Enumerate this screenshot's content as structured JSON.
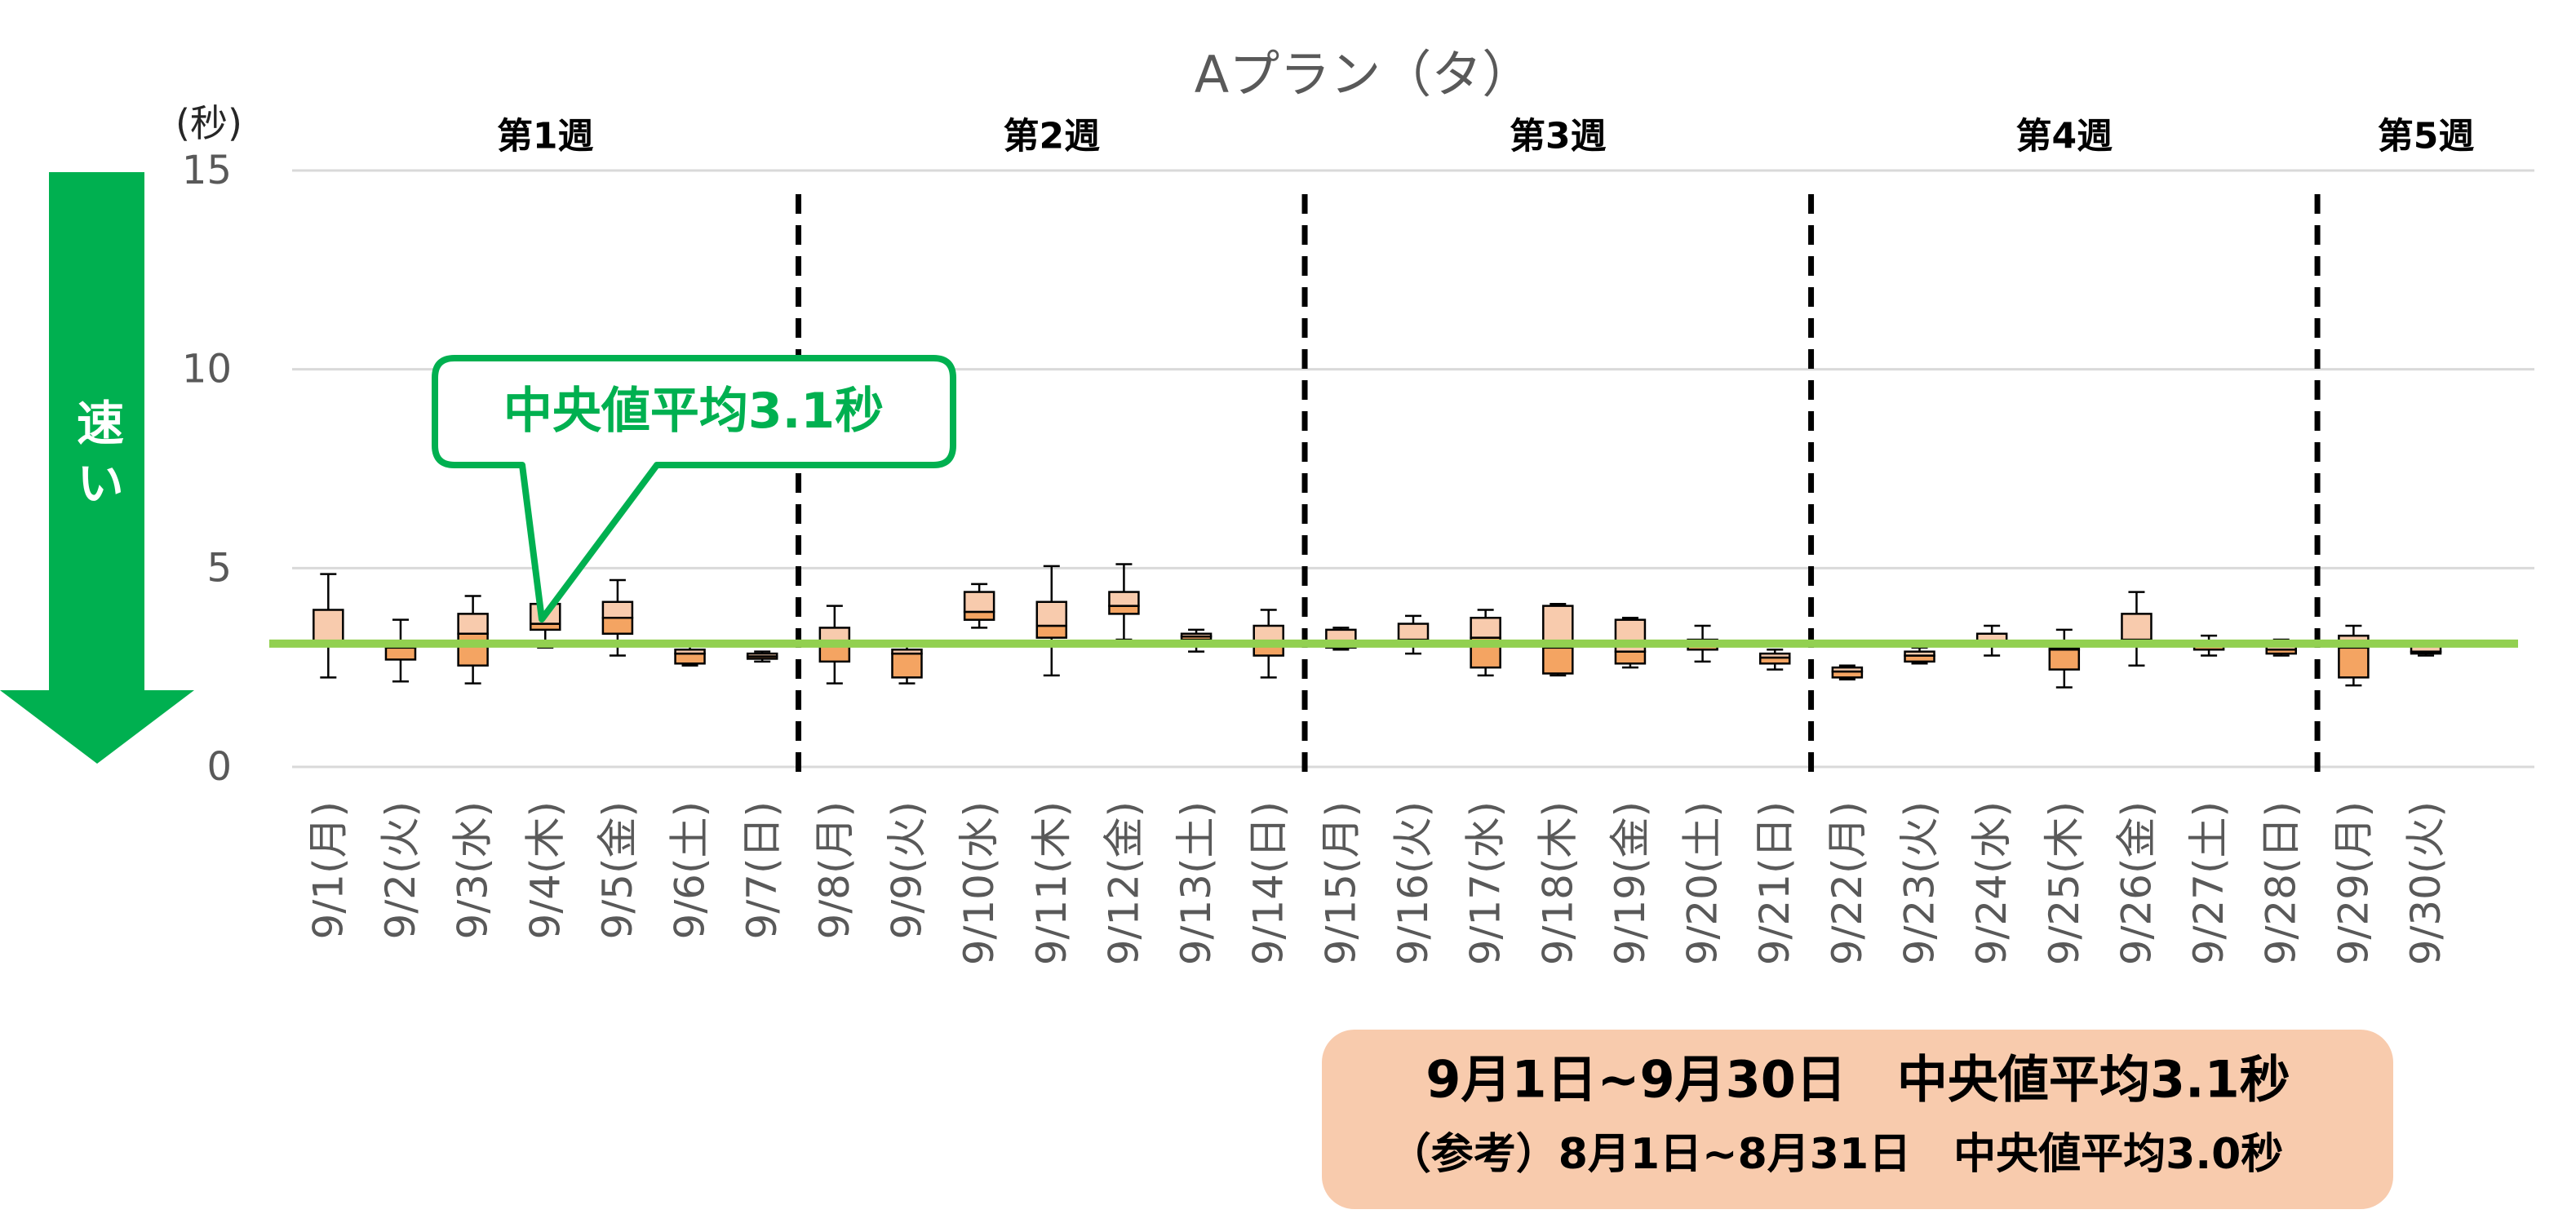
{
  "chart_data": {
    "type": "box",
    "title": "Aプラン（タ）",
    "xlabel": "",
    "ylabel": "(秒)",
    "ylim": [
      0,
      15
    ],
    "yticks": [
      0,
      5,
      10,
      15
    ],
    "grid": true,
    "categories": [
      "9/1(月)",
      "9/2(火)",
      "9/3(水)",
      "9/4(木)",
      "9/5(金)",
      "9/6(土)",
      "9/7(日)",
      "9/8(月)",
      "9/9(火)",
      "9/10(水)",
      "9/11(木)",
      "9/12(金)",
      "9/13(土)",
      "9/14(日)",
      "9/15(月)",
      "9/16(火)",
      "9/17(水)",
      "9/18(木)",
      "9/19(金)",
      "9/20(土)",
      "9/21(日)",
      "9/22(月)",
      "9/23(火)",
      "9/24(水)",
      "9/25(木)",
      "9/26(金)",
      "9/27(土)",
      "9/28(日)",
      "9/29(月)",
      "9/30(火)"
    ],
    "min": [
      2.25,
      2.15,
      2.1,
      3.0,
      2.8,
      2.55,
      2.65,
      2.1,
      2.1,
      3.5,
      2.3,
      3.2,
      2.9,
      2.25,
      2.95,
      2.85,
      2.3,
      2.3,
      2.5,
      2.65,
      2.45,
      2.2,
      2.6,
      2.8,
      2.0,
      2.55,
      2.8,
      2.8,
      2.05,
      2.8
    ],
    "q1": [
      3.1,
      2.7,
      2.55,
      3.45,
      3.35,
      2.6,
      2.72,
      2.65,
      2.25,
      3.7,
      3.25,
      3.85,
      3.2,
      2.8,
      3.0,
      3.15,
      2.5,
      2.35,
      2.6,
      2.95,
      2.6,
      2.25,
      2.65,
      3.05,
      2.45,
      3.1,
      2.95,
      2.85,
      2.25,
      2.85
    ],
    "median": [
      3.15,
      3.0,
      3.35,
      3.6,
      3.75,
      2.85,
      2.78,
      3.1,
      2.85,
      3.9,
      3.55,
      4.05,
      3.28,
      3.05,
      3.05,
      3.2,
      3.25,
      3.0,
      2.9,
      3.05,
      2.75,
      2.4,
      2.8,
      3.1,
      2.95,
      3.2,
      3.05,
      2.95,
      3.0,
      2.9
    ],
    "q3": [
      3.95,
      3.05,
      3.85,
      4.1,
      4.15,
      2.95,
      2.85,
      3.5,
      2.95,
      4.4,
      4.15,
      4.4,
      3.35,
      3.55,
      3.45,
      3.6,
      3.75,
      4.05,
      3.7,
      3.2,
      2.85,
      2.5,
      2.9,
      3.35,
      3.0,
      3.85,
      3.15,
      3.05,
      3.3,
      3.05
    ],
    "max": [
      4.85,
      3.7,
      4.3,
      4.2,
      4.7,
      3.1,
      2.9,
      4.05,
      3.15,
      4.6,
      5.05,
      5.1,
      3.45,
      3.95,
      3.5,
      3.8,
      3.95,
      4.1,
      3.75,
      3.55,
      2.95,
      2.55,
      3.0,
      3.55,
      3.45,
      4.4,
      3.3,
      3.2,
      3.55,
      3.15
    ],
    "groups": [
      {
        "label": "第1週",
        "start_day": 1,
        "end_day": 7
      },
      {
        "label": "第2週",
        "start_day": 8,
        "end_day": 14
      },
      {
        "label": "第3週",
        "start_day": 15,
        "end_day": 21
      },
      {
        "label": "第4週",
        "start_day": 22,
        "end_day": 28
      },
      {
        "label": "第5週",
        "start_day": 29,
        "end_day": 30
      }
    ],
    "reference_line": {
      "value": 3.1,
      "color": "#92D050"
    },
    "colors": {
      "upper_box": "#F8CBAD",
      "lower_box": "#F4A462",
      "outline": "#000000",
      "grid": "#D9D9D9",
      "text": "#595959"
    }
  },
  "speed_arrow": {
    "label": "速い",
    "color": "#00B050"
  },
  "callout": {
    "text": "中央値平均3.1秒",
    "color": "#00B050"
  },
  "summary": {
    "line1": "9月1日~9月30日　中央値平均3.1秒",
    "line2": "（参考）8月1日~8月31日　中央値平均3.0秒",
    "background": "#F8CBAD"
  }
}
